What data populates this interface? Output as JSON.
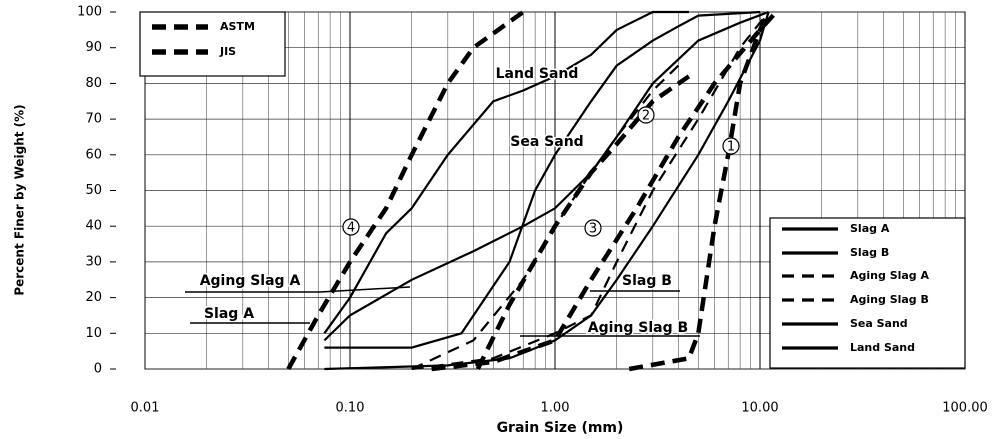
{
  "chart_data": {
    "type": "line",
    "xlabel": "Grain Size (mm)",
    "ylabel": "Percent Finer by Weight (%)",
    "xscale": "log",
    "xlim": [
      0.01,
      100
    ],
    "xticks": [
      {
        "value": 0.01,
        "label": "0.01"
      },
      {
        "value": 0.1,
        "label": "0.10"
      },
      {
        "value": 1,
        "label": "1.00"
      },
      {
        "value": 10,
        "label": "10.00"
      },
      {
        "value": 100,
        "label": "100.00"
      }
    ],
    "ylim": [
      0,
      100
    ],
    "yticks": [
      0,
      10,
      20,
      30,
      40,
      50,
      60,
      70,
      80,
      90,
      100
    ],
    "grid": true,
    "annotations": [
      "Land Sand",
      "Sea Sand",
      "Aging Slag A",
      "Slag A",
      "Slag B",
      "Aging Slag B",
      "1",
      "2",
      "3",
      "4"
    ],
    "series": [
      {
        "name": "ASTM",
        "color": "#000000",
        "dash": "bold",
        "legend": "upper left",
        "curves": [
          {
            "x": [
              0.42,
              0.6,
              1,
              1.5,
              2,
              3,
              4.5
            ],
            "values": [
              0,
              18,
              40,
              55,
              63,
              75,
              82
            ]
          },
          {
            "x": [
              0.25,
              0.5,
              1,
              1.5,
              2.5,
              4,
              6,
              10,
              12
            ],
            "values": [
              0,
              2,
              8,
              25,
              45,
              65,
              80,
              95,
              100
            ]
          }
        ]
      },
      {
        "name": "JIS",
        "color": "#000000",
        "dash": "bold",
        "legend": "upper left",
        "curves": [
          {
            "x": [
              0.05,
              0.07,
              0.1,
              0.15,
              0.2,
              0.3,
              0.4,
              0.7
            ],
            "values": [
              0,
              15,
              30,
              45,
              60,
              80,
              90,
              100
            ]
          },
          {
            "x": [
              2.3,
              4.5,
              5,
              6,
              7,
              8,
              10,
              11
            ],
            "values": [
              0,
              3,
              10,
              40,
              60,
              80,
              95,
              100
            ]
          }
        ]
      },
      {
        "name": "Slag A",
        "color": "#000000",
        "dash": "solid",
        "legend": "lower right",
        "x": [
          0.075,
          0.1,
          0.2,
          0.4,
          0.7,
          1,
          1.5,
          2,
          3,
          5,
          8,
          11
        ],
        "values": [
          8,
          15,
          25,
          33,
          40,
          45,
          55,
          65,
          80,
          92,
          97,
          100
        ]
      },
      {
        "name": "Slag B",
        "color": "#000000",
        "dash": "solid",
        "legend": "lower right",
        "x": [
          0.075,
          0.3,
          0.6,
          1,
          1.5,
          2,
          3,
          5,
          7,
          10,
          11
        ],
        "values": [
          0,
          1,
          3,
          8,
          15,
          25,
          40,
          60,
          75,
          92,
          100
        ]
      },
      {
        "name": "Aging Slag A",
        "color": "#000000",
        "dash": "dashed",
        "legend": "lower right",
        "x": [
          0.2,
          0.4,
          0.7,
          1,
          1.5,
          2,
          3,
          4
        ],
        "values": [
          0,
          8,
          25,
          40,
          55,
          65,
          78,
          85
        ]
      },
      {
        "name": "Aging Slag B",
        "color": "#000000",
        "dash": "dashed",
        "legend": "lower right",
        "x": [
          0.2,
          0.5,
          1,
          1.5,
          2,
          3,
          5,
          8,
          11
        ],
        "values": [
          0,
          3,
          10,
          15,
          30,
          50,
          70,
          90,
          100
        ]
      },
      {
        "name": "Sea Sand",
        "color": "#000000",
        "dash": "solid",
        "legend": "lower right",
        "x": [
          0.075,
          0.2,
          0.35,
          0.6,
          0.8,
          1,
          1.5,
          2,
          3,
          4,
          5,
          10
        ],
        "values": [
          6,
          6,
          10,
          30,
          50,
          60,
          75,
          85,
          92,
          96,
          99,
          100
        ]
      },
      {
        "name": "Land Sand",
        "color": "#000000",
        "dash": "solid",
        "legend": "lower right",
        "x": [
          0.075,
          0.1,
          0.15,
          0.2,
          0.3,
          0.5,
          0.7,
          1,
          1.5,
          2,
          3,
          4.5
        ],
        "values": [
          10,
          20,
          38,
          45,
          60,
          75,
          78,
          82,
          88,
          95,
          100,
          100
        ]
      }
    ]
  }
}
